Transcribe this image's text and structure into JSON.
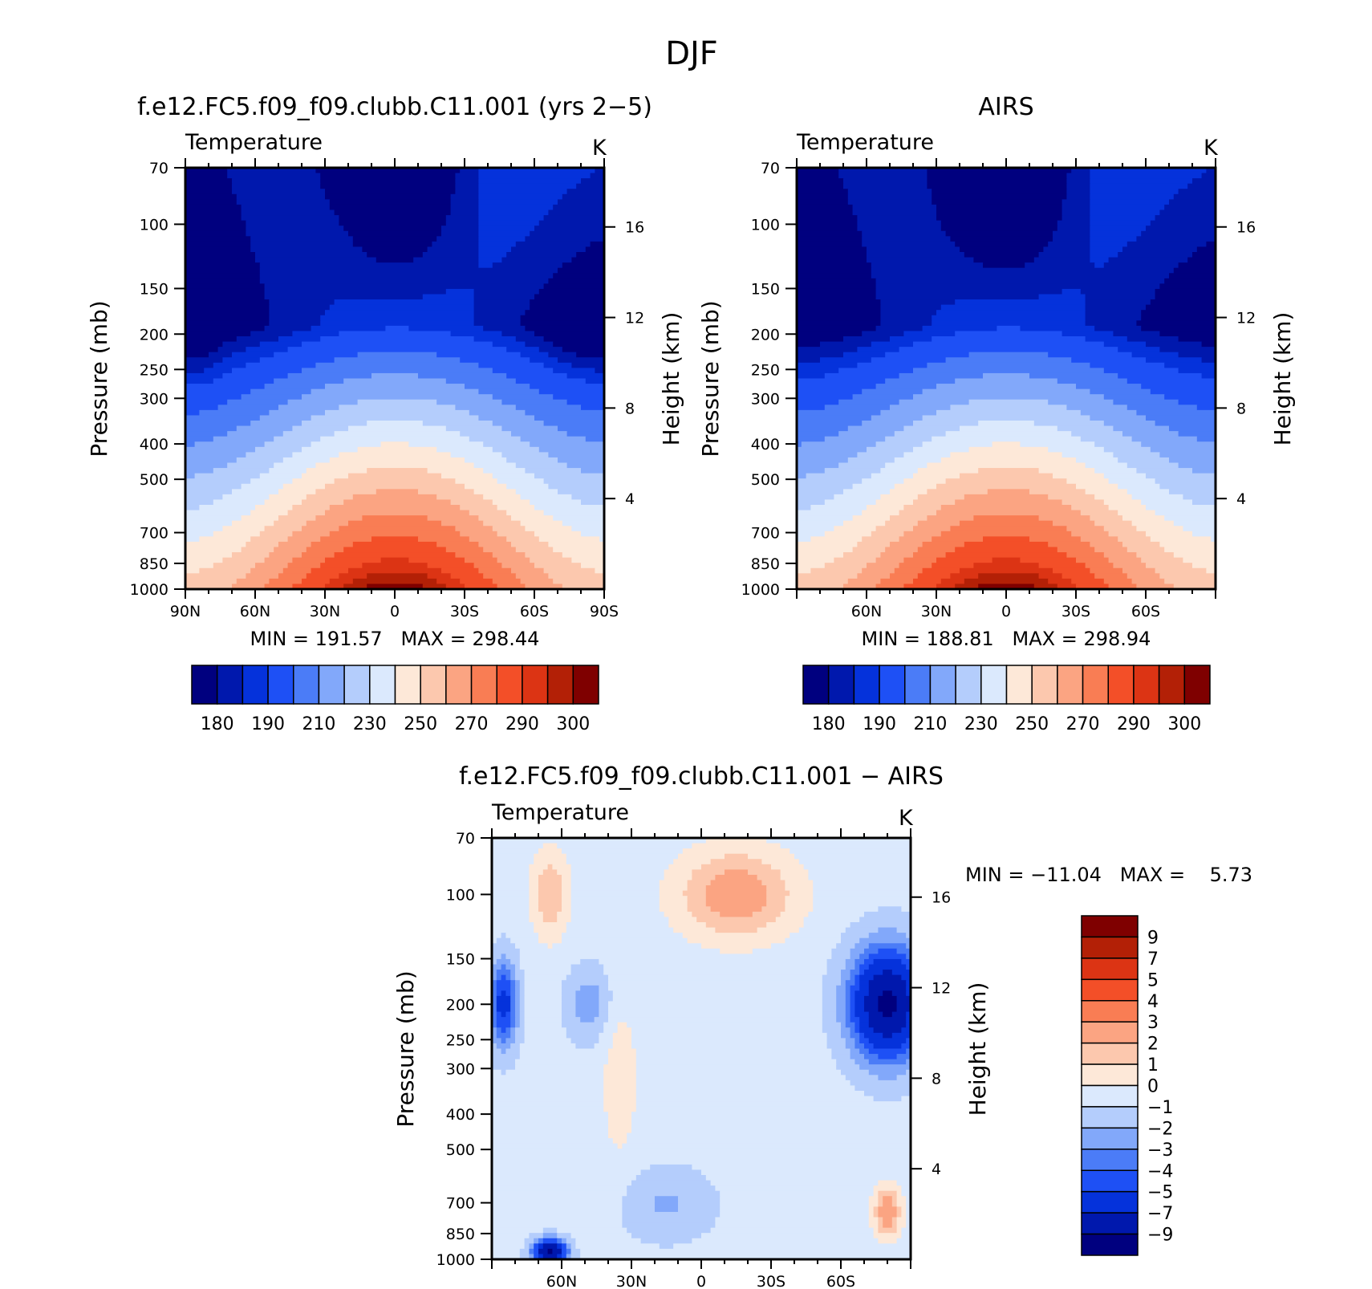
{
  "figure": {
    "title": "DJF"
  },
  "chart_data": [
    {
      "type": "heatmap",
      "title": "f.e12.FC5.f09_f09.clubb.C11.001 (yrs 2−5)",
      "left_label": "Temperature",
      "right_label": "K",
      "ylabel": "Pressure (mb)",
      "ylabel_right": "Height (km)",
      "x_ticks": [
        "90N",
        "60N",
        "30N",
        "0",
        "30S",
        "60S",
        "90S"
      ],
      "x_tick_values": [
        90,
        60,
        30,
        0,
        -30,
        -60,
        -90
      ],
      "xlim": [
        90,
        -90
      ],
      "y_ticks": [
        "70",
        "100",
        "150",
        "200",
        "250",
        "300",
        "400",
        "500",
        "700",
        "850",
        "1000"
      ],
      "y_tick_values": [
        70,
        100,
        150,
        200,
        250,
        300,
        400,
        500,
        700,
        850,
        1000
      ],
      "ylim": [
        1000,
        70
      ],
      "y_scale": "log",
      "height_ticks": [
        "16",
        "12",
        "8",
        "4"
      ],
      "height_tick_values": [
        16,
        12,
        8,
        4
      ],
      "stats": "MIN = 191.57   MAX = 298.44",
      "min": 191.57,
      "max": 298.44,
      "colorbar_orientation": "horizontal",
      "colorbar_labels": [
        "180",
        "190",
        "210",
        "230",
        "250",
        "270",
        "290",
        "300"
      ],
      "field": "model"
    },
    {
      "type": "heatmap",
      "title": "AIRS",
      "left_label": "Temperature",
      "right_label": "K",
      "ylabel": "Pressure (mb)",
      "ylabel_right": "Height (km)",
      "x_ticks": [
        "60N",
        "30N",
        "0",
        "30S",
        "60S"
      ],
      "x_tick_values": [
        60,
        30,
        0,
        -30,
        -60
      ],
      "xlim": [
        90,
        -90
      ],
      "y_ticks": [
        "70",
        "100",
        "150",
        "200",
        "250",
        "300",
        "400",
        "500",
        "700",
        "850",
        "1000"
      ],
      "y_tick_values": [
        70,
        100,
        150,
        200,
        250,
        300,
        400,
        500,
        700,
        850,
        1000
      ],
      "ylim": [
        1000,
        70
      ],
      "y_scale": "log",
      "height_ticks": [
        "16",
        "12",
        "8",
        "4"
      ],
      "height_tick_values": [
        16,
        12,
        8,
        4
      ],
      "stats": "MIN = 188.81   MAX = 298.94",
      "min": 188.81,
      "max": 298.94,
      "colorbar_orientation": "horizontal",
      "colorbar_labels": [
        "180",
        "190",
        "210",
        "230",
        "250",
        "270",
        "290",
        "300"
      ],
      "field": "obs"
    },
    {
      "type": "heatmap",
      "title": "f.e12.FC5.f09_f09.clubb.C11.001 − AIRS",
      "left_label": "Temperature",
      "right_label": "K",
      "ylabel": "Pressure (mb)",
      "ylabel_right": "Height (km)",
      "x_ticks": [
        "60N",
        "30N",
        "0",
        "30S",
        "60S"
      ],
      "x_tick_values": [
        60,
        30,
        0,
        -30,
        -60
      ],
      "xlim": [
        90,
        -90
      ],
      "y_ticks": [
        "70",
        "100",
        "150",
        "200",
        "250",
        "300",
        "400",
        "500",
        "700",
        "850",
        "1000"
      ],
      "y_tick_values": [
        70,
        100,
        150,
        200,
        250,
        300,
        400,
        500,
        700,
        850,
        1000
      ],
      "ylim": [
        1000,
        70
      ],
      "y_scale": "log",
      "height_ticks": [
        "16",
        "12",
        "8",
        "4"
      ],
      "height_tick_values": [
        16,
        12,
        8,
        4
      ],
      "stats": "MIN = −11.04   MAX =    5.73",
      "min": -11.04,
      "max": 5.73,
      "colorbar_orientation": "vertical",
      "colorbar_labels": [
        "9",
        "7",
        "5",
        "4",
        "3",
        "2",
        "1",
        "0",
        "−1",
        "−2",
        "−3",
        "−4",
        "−5",
        "−7",
        "−9"
      ],
      "field": "diff"
    }
  ],
  "colors": {
    "abs_scale": [
      "#00007f",
      "#0018ad",
      "#0532db",
      "#1e50f5",
      "#4b7cf7",
      "#82a8fa",
      "#b4cdfc",
      "#dbe9fd",
      "#fde8d8",
      "#fcc8ae",
      "#fba482",
      "#f97d54",
      "#f34f28",
      "#dc3414",
      "#b32006",
      "#7f0000"
    ],
    "diff_scale": [
      "#00007f",
      "#0018ad",
      "#0532db",
      "#1e50f5",
      "#4b7cf7",
      "#82a8fa",
      "#b4cdfc",
      "#dbe9fd",
      "#fde8d8",
      "#fcc8ae",
      "#fba482",
      "#f97d54",
      "#f34f28",
      "#dc3414",
      "#b32006",
      "#7f0000"
    ]
  }
}
